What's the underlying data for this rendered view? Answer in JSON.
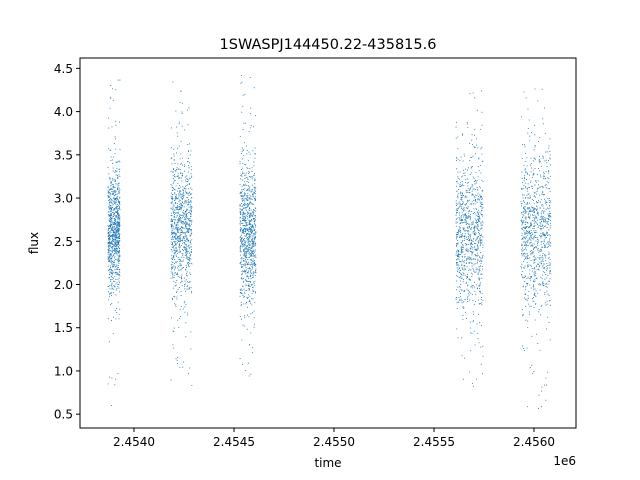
{
  "chart_data": {
    "type": "scatter",
    "title": "1SWASPJ144450.22-435815.6",
    "xlabel": "time",
    "ylabel": "flux",
    "x_offset_label": "1e6",
    "xlim": [
      2453730,
      2456210
    ],
    "ylim": [
      0.34,
      4.62
    ],
    "x_ticks": [
      2454000,
      2454500,
      2455000,
      2455500,
      2456000
    ],
    "x_tick_labels": [
      "2.4540",
      "2.4545",
      "2.4550",
      "2.4555",
      "2.4560"
    ],
    "y_ticks": [
      0.5,
      1.0,
      1.5,
      2.0,
      2.5,
      3.0,
      3.5,
      4.0,
      4.5
    ],
    "y_tick_labels": [
      "0.5",
      "1.0",
      "1.5",
      "2.0",
      "2.5",
      "3.0",
      "3.5",
      "4.0",
      "4.5"
    ],
    "grid": false,
    "marker_color": "#1f77b4",
    "observing_seasons": [
      {
        "x_start": 2453870,
        "x_end": 2453930,
        "y_core": [
          2.05,
          3.15
        ],
        "y_range": [
          0.52,
          4.42
        ]
      },
      {
        "x_start": 2454185,
        "x_end": 2454290,
        "y_core": [
          2.0,
          3.3
        ],
        "y_range": [
          0.58,
          4.35
        ]
      },
      {
        "x_start": 2454530,
        "x_end": 2454610,
        "y_core": [
          1.95,
          3.2
        ],
        "y_range": [
          0.9,
          4.42
        ]
      },
      {
        "x_start": 2455610,
        "x_end": 2455745,
        "y_core": [
          1.9,
          3.3
        ],
        "y_range": [
          0.72,
          4.25
        ]
      },
      {
        "x_start": 2455935,
        "x_end": 2456085,
        "y_core": [
          1.85,
          3.35
        ],
        "y_range": [
          0.52,
          4.38
        ]
      }
    ]
  }
}
